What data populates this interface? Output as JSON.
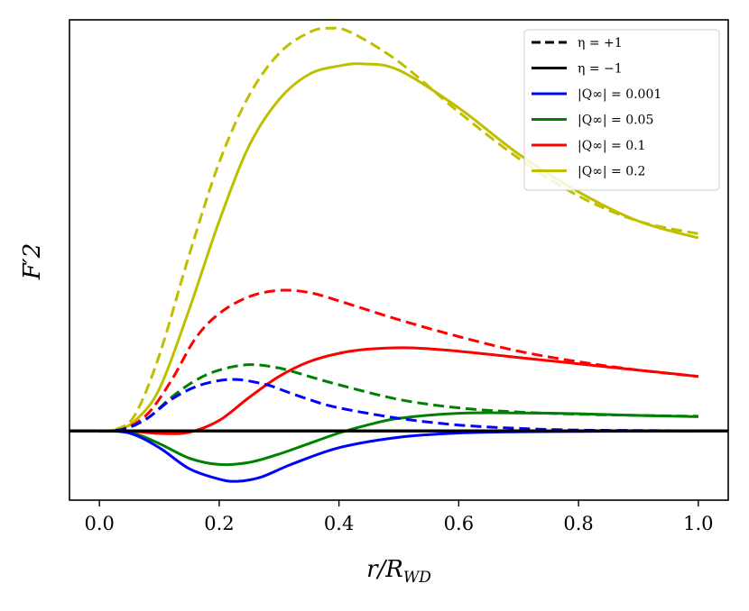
{
  "chart_data": {
    "type": "line",
    "title": "",
    "xlabel": "r/R_WD",
    "ylabel": "F'2",
    "xlim": [
      -0.05,
      1.05
    ],
    "ylim": [
      -0.165,
      0.98
    ],
    "xticks": [
      "0.0",
      "0.2",
      "0.4",
      "0.6",
      "0.8",
      "1.0"
    ],
    "xtick_values": [
      0.0,
      0.2,
      0.4,
      0.6,
      0.8,
      1.0
    ],
    "yticks_shown": false,
    "grid": false,
    "legend_position": "top-right",
    "legend": [
      {
        "label": "η = +1",
        "color": "#000000",
        "dash": "dashed"
      },
      {
        "label": "η = −1",
        "color": "#000000",
        "dash": "solid"
      },
      {
        "label": "|Q∞| = 0.001",
        "color": "#0000ff",
        "dash": "solid"
      },
      {
        "label": "|Q∞| = 0.05",
        "color": "#008000",
        "dash": "solid"
      },
      {
        "label": "|Q∞| = 0.1",
        "color": "#ff0000",
        "dash": "solid"
      },
      {
        "label": "|Q∞| = 0.2",
        "color": "#bfbf00",
        "dash": "solid"
      }
    ],
    "series": [
      {
        "color": "#bfbf00",
        "dash": "dashed",
        "points": [
          [
            0,
            0
          ],
          [
            0.03,
            0.005
          ],
          [
            0.06,
            0.04
          ],
          [
            0.1,
            0.18
          ],
          [
            0.15,
            0.42
          ],
          [
            0.2,
            0.64
          ],
          [
            0.25,
            0.8
          ],
          [
            0.3,
            0.9
          ],
          [
            0.35,
            0.95
          ],
          [
            0.385,
            0.96
          ],
          [
            0.42,
            0.95
          ],
          [
            0.5,
            0.88
          ],
          [
            0.6,
            0.76
          ],
          [
            0.7,
            0.65
          ],
          [
            0.8,
            0.56
          ],
          [
            0.9,
            0.5
          ],
          [
            1.0,
            0.47
          ]
        ]
      },
      {
        "color": "#bfbf00",
        "dash": "solid",
        "points": [
          [
            0,
            0
          ],
          [
            0.03,
            0.003
          ],
          [
            0.06,
            0.025
          ],
          [
            0.1,
            0.1
          ],
          [
            0.15,
            0.29
          ],
          [
            0.2,
            0.5
          ],
          [
            0.25,
            0.68
          ],
          [
            0.3,
            0.79
          ],
          [
            0.35,
            0.85
          ],
          [
            0.4,
            0.87
          ],
          [
            0.44,
            0.875
          ],
          [
            0.5,
            0.86
          ],
          [
            0.6,
            0.77
          ],
          [
            0.7,
            0.66
          ],
          [
            0.8,
            0.57
          ],
          [
            0.9,
            0.5
          ],
          [
            1.0,
            0.46
          ]
        ]
      },
      {
        "color": "#ff0000",
        "dash": "dashed",
        "points": [
          [
            0,
            0
          ],
          [
            0.04,
            0.005
          ],
          [
            0.08,
            0.04
          ],
          [
            0.12,
            0.12
          ],
          [
            0.16,
            0.22
          ],
          [
            0.2,
            0.28
          ],
          [
            0.25,
            0.32
          ],
          [
            0.3,
            0.335
          ],
          [
            0.35,
            0.33
          ],
          [
            0.4,
            0.31
          ],
          [
            0.5,
            0.265
          ],
          [
            0.6,
            0.225
          ],
          [
            0.7,
            0.19
          ],
          [
            0.8,
            0.165
          ],
          [
            0.9,
            0.145
          ],
          [
            1.0,
            0.13
          ]
        ]
      },
      {
        "color": "#ff0000",
        "dash": "solid",
        "points": [
          [
            0,
            0
          ],
          [
            0.05,
            0
          ],
          [
            0.1,
            -0.006
          ],
          [
            0.15,
            -0.003
          ],
          [
            0.2,
            0.025
          ],
          [
            0.25,
            0.08
          ],
          [
            0.3,
            0.13
          ],
          [
            0.35,
            0.165
          ],
          [
            0.4,
            0.185
          ],
          [
            0.45,
            0.195
          ],
          [
            0.52,
            0.198
          ],
          [
            0.6,
            0.19
          ],
          [
            0.7,
            0.175
          ],
          [
            0.8,
            0.16
          ],
          [
            0.9,
            0.145
          ],
          [
            1.0,
            0.13
          ]
        ]
      },
      {
        "color": "#008000",
        "dash": "dashed",
        "points": [
          [
            0,
            0
          ],
          [
            0.04,
            0.004
          ],
          [
            0.08,
            0.03
          ],
          [
            0.12,
            0.08
          ],
          [
            0.16,
            0.12
          ],
          [
            0.2,
            0.145
          ],
          [
            0.25,
            0.158
          ],
          [
            0.3,
            0.15
          ],
          [
            0.35,
            0.13
          ],
          [
            0.4,
            0.11
          ],
          [
            0.5,
            0.075
          ],
          [
            0.6,
            0.055
          ],
          [
            0.7,
            0.045
          ],
          [
            0.8,
            0.04
          ],
          [
            0.9,
            0.037
          ],
          [
            1.0,
            0.035
          ]
        ]
      },
      {
        "color": "#008000",
        "dash": "solid",
        "points": [
          [
            0,
            0
          ],
          [
            0.05,
            -0.003
          ],
          [
            0.1,
            -0.03
          ],
          [
            0.15,
            -0.065
          ],
          [
            0.2,
            -0.08
          ],
          [
            0.25,
            -0.075
          ],
          [
            0.3,
            -0.055
          ],
          [
            0.35,
            -0.03
          ],
          [
            0.4,
            -0.005
          ],
          [
            0.45,
            0.015
          ],
          [
            0.5,
            0.03
          ],
          [
            0.6,
            0.042
          ],
          [
            0.7,
            0.043
          ],
          [
            0.8,
            0.041
          ],
          [
            0.9,
            0.037
          ],
          [
            1.0,
            0.034
          ]
        ]
      },
      {
        "color": "#0000ff",
        "dash": "dashed",
        "points": [
          [
            0,
            0
          ],
          [
            0.04,
            0.004
          ],
          [
            0.08,
            0.03
          ],
          [
            0.12,
            0.075
          ],
          [
            0.16,
            0.105
          ],
          [
            0.2,
            0.12
          ],
          [
            0.235,
            0.122
          ],
          [
            0.28,
            0.11
          ],
          [
            0.3,
            0.1
          ],
          [
            0.35,
            0.075
          ],
          [
            0.4,
            0.055
          ],
          [
            0.5,
            0.03
          ],
          [
            0.6,
            0.014
          ],
          [
            0.7,
            0.006
          ],
          [
            0.8,
            0.002
          ],
          [
            0.9,
            0.001
          ],
          [
            1.0,
            0
          ]
        ]
      },
      {
        "color": "#0000ff",
        "dash": "solid",
        "points": [
          [
            0,
            0
          ],
          [
            0.05,
            -0.005
          ],
          [
            0.1,
            -0.04
          ],
          [
            0.15,
            -0.09
          ],
          [
            0.2,
            -0.115
          ],
          [
            0.23,
            -0.12
          ],
          [
            0.27,
            -0.11
          ],
          [
            0.32,
            -0.08
          ],
          [
            0.4,
            -0.04
          ],
          [
            0.5,
            -0.015
          ],
          [
            0.6,
            -0.005
          ],
          [
            0.7,
            -0.002
          ],
          [
            0.8,
            -0.001
          ],
          [
            0.9,
            0
          ],
          [
            1.0,
            0
          ]
        ]
      },
      {
        "color": "#000000",
        "dash": "solid",
        "points": [
          [
            -0.05,
            0
          ],
          [
            1.05,
            0
          ]
        ]
      }
    ]
  }
}
